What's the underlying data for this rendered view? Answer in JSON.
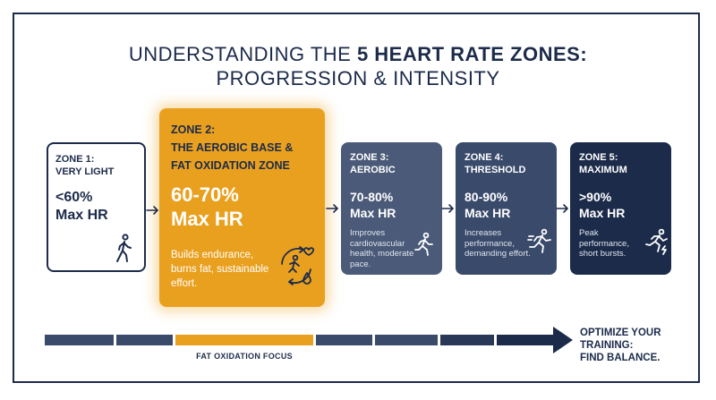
{
  "title": {
    "line1_prefix": "UNDERSTANDING THE ",
    "line1_bold": "5 HEART RATE ZONES:",
    "line2": "PROGRESSION & INTENSITY"
  },
  "zones": [
    {
      "name_line1": "ZONE 1:",
      "name_line2": "VERY LIGHT",
      "hr_line1": "<60%",
      "hr_line2": "Max HR",
      "description": "",
      "icon": "walking-person-icon"
    },
    {
      "name_line1": "ZONE 2:",
      "name_line2": "THE AEROBIC BASE &",
      "name_line3": "FAT OXIDATION ZONE",
      "hr_line1": "60-70%",
      "hr_line2": "Max HR",
      "description": "Builds endurance, burns fat, sustainable effort.",
      "icon": "fat-burn-runner-icon"
    },
    {
      "name_line1": "ZONE 3:",
      "name_line2": "AEROBIC",
      "hr_line1": "70-80%",
      "hr_line2": "Max HR",
      "description": "Improves cardiovascular health, moderate pace.",
      "icon": "jogging-person-icon"
    },
    {
      "name_line1": "ZONE 4:",
      "name_line2": "THRESHOLD",
      "hr_line1": "80-90%",
      "hr_line2": "Max HR",
      "description": "Increases performance, demanding effort.",
      "icon": "running-person-icon"
    },
    {
      "name_line1": "ZONE 5:",
      "name_line2": "MAXIMUM",
      "hr_line1": ">90%",
      "hr_line2": "Max HR",
      "description": "Peak performance, short bursts.",
      "icon": "sprinting-person-icon"
    }
  ],
  "progress_bar": {
    "highlight_label": "FAT OXIDATION FOCUS",
    "segment_colors": [
      "#3a4a6b",
      "#3a4a6b",
      "#e9a01f",
      "#3a4a6b",
      "#3a4a6b",
      "#2a3858",
      "#1c2b4a"
    ]
  },
  "cta": {
    "line1": "OPTIMIZE YOUR",
    "line2": "TRAINING:",
    "line3": "FIND BALANCE."
  },
  "colors": {
    "navy": "#1c2b4a",
    "accent": "#e9a01f",
    "zone3": "#4a5a78",
    "zone4": "#3a4a6b",
    "zone5": "#1c2b4a"
  }
}
